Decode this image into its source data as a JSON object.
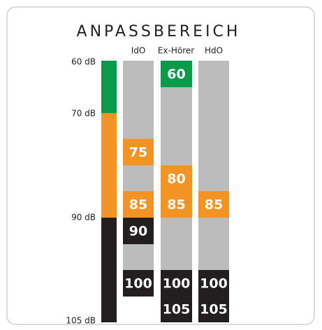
{
  "title": "ANPASSBEREICH",
  "scale": [
    "60 dB",
    "70 dB",
    "90 dB",
    "105 dB"
  ],
  "columns": [
    {
      "name": "IdO",
      "blocks": [
        75,
        85,
        90,
        100
      ]
    },
    {
      "name": "Ex-Hörer",
      "blocks": [
        60,
        80,
        85,
        100,
        105
      ]
    },
    {
      "name": "HdO",
      "blocks": [
        85,
        100,
        105
      ]
    }
  ]
}
